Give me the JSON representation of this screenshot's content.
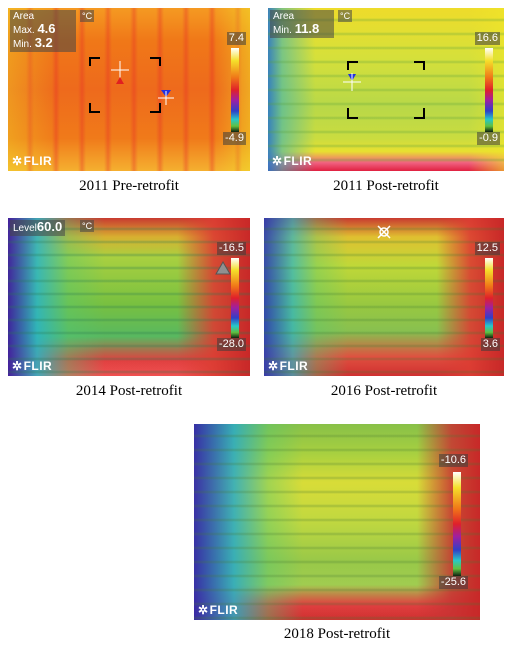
{
  "panels": [
    {
      "caption": "2011 Pre-retrofit",
      "hud": {
        "area_label": "Area",
        "max_label": "Max.",
        "max_value": "4.6",
        "min_label": "Min.",
        "min_value": "3.2",
        "unit": "°C"
      },
      "scale": {
        "top": "7.4",
        "bottom": "-4.9"
      },
      "logo": "FLIR"
    },
    {
      "caption": "2011 Post-retrofit",
      "hud": {
        "area_label": "Area",
        "min_label": "Min.",
        "min_value": "11.8",
        "unit": "°C"
      },
      "scale": {
        "top": "16.6",
        "bottom": "-0.9"
      },
      "logo": "FLIR"
    },
    {
      "caption": "2014 Post-retrofit",
      "hud": {
        "level_label": "Level",
        "level_value": "60.0",
        "unit": "°C"
      },
      "scale": {
        "top": "-16.5",
        "bottom": "-28.0"
      },
      "logo": "FLIR"
    },
    {
      "caption": "2016 Post-retrofit",
      "scale": {
        "top": "12.5",
        "bottom": "3.6"
      },
      "logo": "FLIR"
    },
    {
      "caption": "2018 Post-retrofit",
      "scale": {
        "top": "-10.6",
        "bottom": "-25.6"
      },
      "logo": "FLIR"
    }
  ],
  "colors": {
    "hot_red": "#e0202a",
    "orange": "#f07818",
    "yellow": "#f2e12a",
    "green": "#8cc83c",
    "cyan": "#28c8c8",
    "blue": "#3040c8",
    "purple": "#7030a0"
  }
}
